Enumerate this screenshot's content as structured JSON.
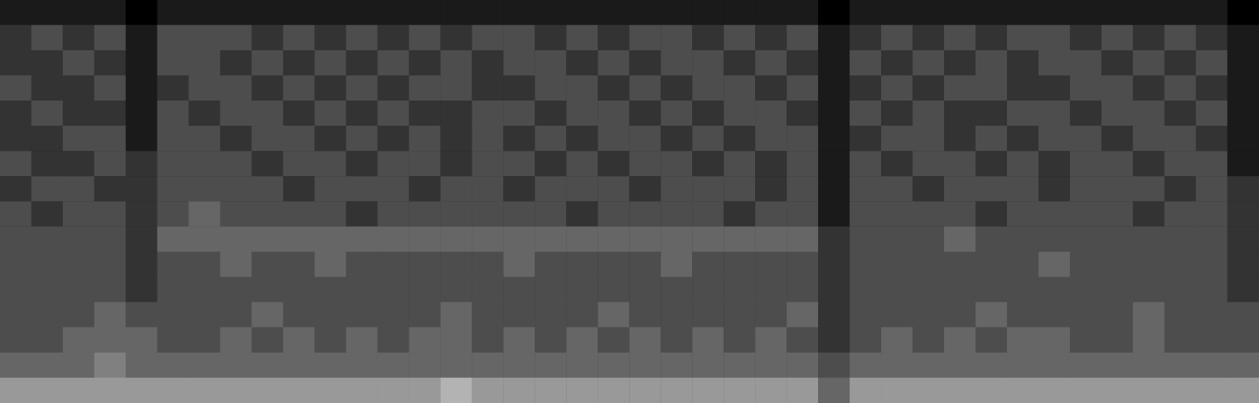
{
  "chart_data": {
    "type": "heatmap",
    "tick_labels": false,
    "color": "#ffffff",
    "value_range": [
      0,
      10
    ],
    "cells": [
      [
        1,
        1,
        1,
        1,
        0,
        1,
        1,
        1,
        1,
        1,
        1,
        1,
        1,
        1,
        1,
        1,
        1,
        1,
        1,
        1,
        1,
        1,
        1,
        1,
        1,
        1,
        0,
        1,
        1,
        1,
        1,
        1,
        1,
        1,
        1,
        1,
        1,
        1,
        1,
        0
      ],
      [
        2,
        3,
        2,
        3,
        1,
        3,
        3,
        3,
        2,
        3,
        2,
        3,
        2,
        3,
        2,
        3,
        3,
        2,
        3,
        2,
        3,
        3,
        2,
        3,
        2,
        3,
        1,
        2,
        3,
        2,
        3,
        2,
        3,
        3,
        2,
        3,
        2,
        3,
        2,
        1
      ],
      [
        2,
        2,
        3,
        2,
        1,
        3,
        3,
        2,
        3,
        2,
        3,
        2,
        3,
        2,
        3,
        2,
        3,
        3,
        2,
        3,
        2,
        3,
        3,
        2,
        3,
        2,
        1,
        3,
        2,
        3,
        2,
        3,
        2,
        3,
        3,
        2,
        3,
        2,
        3,
        1
      ],
      [
        3,
        2,
        2,
        3,
        1,
        2,
        3,
        3,
        2,
        3,
        2,
        3,
        2,
        3,
        3,
        2,
        2,
        3,
        3,
        2,
        3,
        2,
        3,
        3,
        2,
        3,
        1,
        2,
        3,
        2,
        3,
        3,
        2,
        2,
        3,
        3,
        2,
        3,
        2,
        1
      ],
      [
        2,
        3,
        2,
        2,
        1,
        3,
        2,
        3,
        3,
        2,
        3,
        2,
        3,
        2,
        2,
        3,
        3,
        2,
        3,
        3,
        2,
        3,
        2,
        3,
        3,
        2,
        1,
        3,
        2,
        3,
        2,
        2,
        3,
        3,
        2,
        3,
        3,
        2,
        3,
        1
      ],
      [
        2,
        2,
        3,
        3,
        1,
        3,
        3,
        2,
        3,
        3,
        2,
        3,
        2,
        3,
        2,
        3,
        2,
        3,
        2,
        3,
        3,
        2,
        3,
        2,
        3,
        3,
        1,
        2,
        3,
        3,
        2,
        3,
        2,
        3,
        3,
        2,
        3,
        3,
        2,
        1
      ],
      [
        3,
        2,
        2,
        3,
        2,
        3,
        3,
        3,
        2,
        3,
        3,
        2,
        3,
        3,
        2,
        3,
        3,
        2,
        3,
        2,
        3,
        3,
        2,
        3,
        2,
        3,
        1,
        3,
        2,
        3,
        3,
        2,
        3,
        2,
        3,
        3,
        2,
        3,
        3,
        1
      ],
      [
        2,
        3,
        3,
        2,
        2,
        3,
        3,
        3,
        3,
        2,
        3,
        3,
        3,
        2,
        3,
        3,
        2,
        3,
        3,
        3,
        2,
        3,
        3,
        3,
        2,
        3,
        1,
        3,
        3,
        2,
        3,
        3,
        3,
        2,
        3,
        3,
        3,
        2,
        3,
        2
      ],
      [
        3,
        2,
        3,
        3,
        2,
        3,
        4,
        3,
        3,
        3,
        3,
        2,
        3,
        3,
        3,
        3,
        3,
        3,
        2,
        3,
        3,
        3,
        3,
        2,
        3,
        3,
        1,
        3,
        3,
        3,
        3,
        2,
        3,
        3,
        3,
        3,
        2,
        3,
        3,
        2
      ],
      [
        3,
        3,
        3,
        3,
        2,
        4,
        4,
        4,
        4,
        4,
        4,
        4,
        4,
        4,
        4,
        4,
        4,
        4,
        4,
        4,
        4,
        4,
        4,
        4,
        4,
        4,
        2,
        3,
        3,
        3,
        4,
        3,
        3,
        3,
        3,
        3,
        3,
        3,
        3,
        2
      ],
      [
        3,
        3,
        3,
        3,
        2,
        3,
        3,
        4,
        3,
        3,
        4,
        3,
        3,
        3,
        3,
        3,
        4,
        3,
        3,
        3,
        3,
        4,
        3,
        3,
        3,
        3,
        2,
        3,
        3,
        3,
        3,
        3,
        3,
        4,
        3,
        3,
        3,
        3,
        3,
        2
      ],
      [
        3,
        3,
        3,
        3,
        2,
        3,
        3,
        3,
        3,
        3,
        3,
        3,
        3,
        3,
        3,
        3,
        3,
        3,
        3,
        3,
        3,
        3,
        3,
        3,
        3,
        3,
        2,
        3,
        3,
        3,
        3,
        3,
        3,
        3,
        3,
        3,
        3,
        3,
        3,
        2
      ],
      [
        3,
        3,
        3,
        4,
        3,
        3,
        3,
        3,
        4,
        3,
        3,
        3,
        3,
        3,
        4,
        3,
        3,
        3,
        3,
        4,
        3,
        3,
        3,
        3,
        3,
        4,
        2,
        3,
        3,
        3,
        3,
        4,
        3,
        3,
        3,
        3,
        4,
        3,
        3,
        3
      ],
      [
        3,
        3,
        4,
        4,
        4,
        3,
        3,
        4,
        3,
        4,
        3,
        4,
        3,
        4,
        4,
        3,
        4,
        3,
        4,
        3,
        4,
        3,
        4,
        3,
        4,
        3,
        2,
        3,
        4,
        3,
        4,
        3,
        4,
        4,
        3,
        3,
        4,
        3,
        3,
        3
      ],
      [
        4,
        4,
        4,
        5,
        4,
        4,
        4,
        4,
        4,
        4,
        4,
        4,
        4,
        4,
        4,
        4,
        4,
        4,
        4,
        4,
        4,
        4,
        4,
        4,
        4,
        4,
        3,
        4,
        4,
        4,
        4,
        4,
        4,
        4,
        4,
        4,
        4,
        4,
        4,
        4
      ],
      [
        6,
        6,
        6,
        6,
        6,
        6,
        6,
        6,
        6,
        6,
        6,
        6,
        6,
        6,
        7,
        6,
        6,
        6,
        6,
        6,
        6,
        6,
        6,
        6,
        6,
        6,
        4,
        6,
        6,
        6,
        6,
        6,
        6,
        6,
        6,
        6,
        6,
        6,
        6,
        6
      ]
    ]
  }
}
